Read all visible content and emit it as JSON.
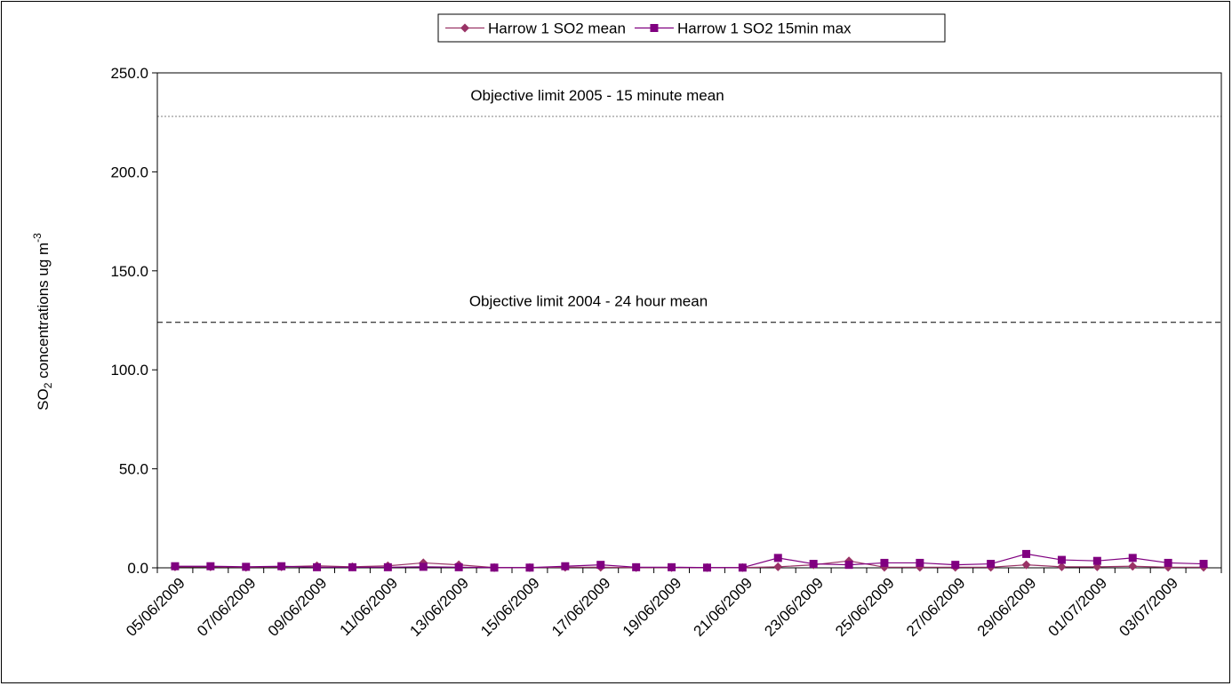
{
  "chart_data": {
    "type": "line",
    "ylabel_main": "SO",
    "ylabel_sub": "2",
    "ylabel_rest": " concentrations ug m",
    "ylabel_sup": "-3",
    "ylim": [
      0,
      250
    ],
    "y_ticks": [
      "0.0",
      "50.0",
      "100.0",
      "150.0",
      "200.0",
      "250.0"
    ],
    "y_tick_values": [
      0,
      50,
      100,
      150,
      200,
      250
    ],
    "legend_position": "top-center",
    "grid": false,
    "x_labels": [
      "05/06/2009",
      "07/06/2009",
      "09/06/2009",
      "11/06/2009",
      "13/06/2009",
      "15/06/2009",
      "17/06/2009",
      "19/06/2009",
      "21/06/2009",
      "23/06/2009",
      "25/06/2009",
      "27/06/2009",
      "29/06/2009",
      "01/07/2009",
      "03/07/2009"
    ],
    "x": [
      "05/06/2009",
      "06/06/2009",
      "07/06/2009",
      "08/06/2009",
      "09/06/2009",
      "10/06/2009",
      "11/06/2009",
      "12/06/2009",
      "13/06/2009",
      "14/06/2009",
      "15/06/2009",
      "16/06/2009",
      "17/06/2009",
      "18/06/2009",
      "19/06/2009",
      "20/06/2009",
      "21/06/2009",
      "22/06/2009",
      "23/06/2009",
      "24/06/2009",
      "25/06/2009",
      "26/06/2009",
      "27/06/2009",
      "28/06/2009",
      "29/06/2009",
      "30/06/2009",
      "01/07/2009",
      "02/07/2009",
      "03/07/2009",
      "04/07/2009"
    ],
    "series": [
      {
        "name": "Harrow 1 SO2 mean",
        "color": "#993366",
        "marker": "diamond",
        "values": [
          0.5,
          0.5,
          0.3,
          0.5,
          1.0,
          0.5,
          1.0,
          2.5,
          1.5,
          0.1,
          0.1,
          0.3,
          0.3,
          0.1,
          0.1,
          0.1,
          0.1,
          0.5,
          1.5,
          3.5,
          0.3,
          0.3,
          0.3,
          0.3,
          1.5,
          0.5,
          0.5,
          0.8,
          0.3,
          0.3
        ]
      },
      {
        "name": "Harrow 1 SO2 15min max",
        "color": "#800080",
        "marker": "square",
        "values": [
          0.8,
          0.8,
          0.5,
          0.8,
          0.3,
          0.3,
          0.3,
          0.5,
          0.3,
          0.1,
          0.1,
          0.8,
          1.5,
          0.3,
          0.3,
          0.1,
          0.1,
          5.0,
          2.0,
          1.5,
          2.5,
          2.5,
          1.5,
          2.0,
          7.0,
          4.0,
          3.5,
          5.0,
          2.5,
          2.0
        ]
      }
    ],
    "reference_lines": [
      {
        "label": "Objective limit 2005 - 15 minute mean",
        "value": 228,
        "style": "dotted",
        "color": "#808080"
      },
      {
        "label": "Objective limit 2004 - 24 hour mean",
        "value": 124,
        "style": "dashed",
        "color": "#000000"
      }
    ]
  }
}
